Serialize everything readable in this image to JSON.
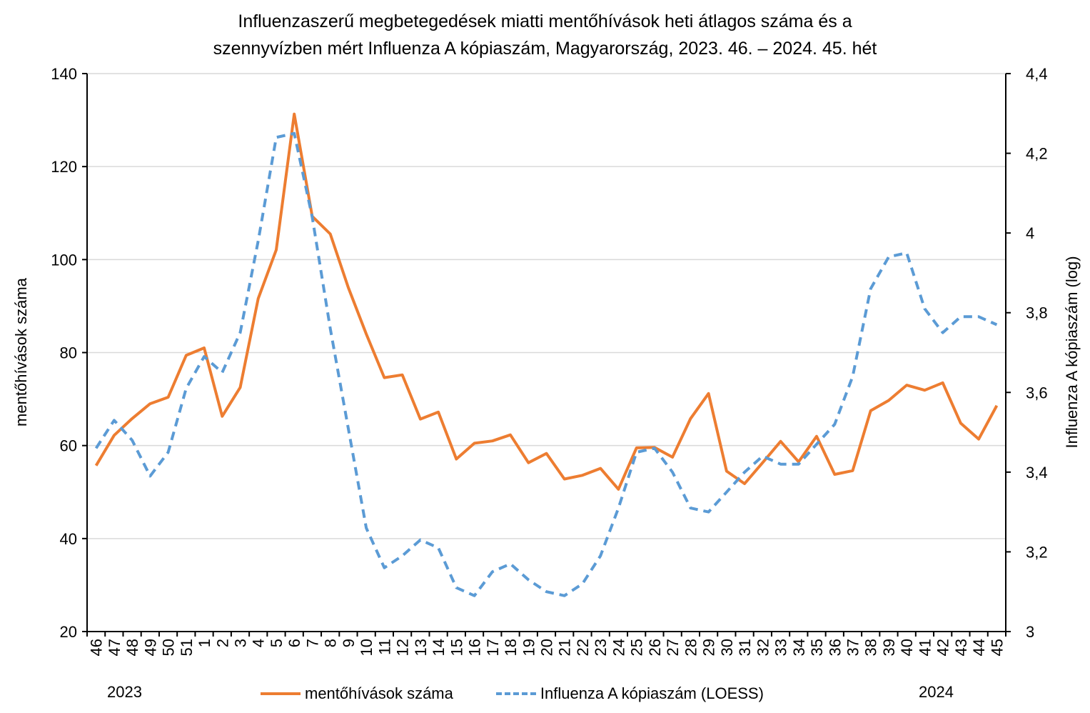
{
  "title_line1": "Influenzaszerű megbetegedések miatti mentőhívások heti átlagos száma és a",
  "title_line2": "szennyvízben mért Influenza A kópiaszám, Magyarország, 2023. 46. – 2024. 45. hét",
  "year_left": "2023",
  "year_right": "2024",
  "colors": {
    "calls": "#ED7D31",
    "influenza": "#5B9BD5",
    "grid": "#D9D9D9",
    "axis": "#000000"
  },
  "chart_data": {
    "type": "line",
    "title": "Influenzaszerű megbetegedések miatti mentőhívások heti átlagos száma és a szennyvízben mért Influenza A kópiaszám, Magyarország, 2023. 46. – 2024. 45. hét",
    "ylabel": "mentőhívások száma",
    "y2label": "Influenza A kópiaszám (log)",
    "ylim": [
      20,
      140
    ],
    "y2lim": [
      3.0,
      4.4
    ],
    "yticks": [
      "20",
      "40",
      "60",
      "80",
      "100",
      "120",
      "140"
    ],
    "y2ticks": [
      "3",
      "3,2",
      "3,4",
      "3,6",
      "3,8",
      "4",
      "4,2",
      "4,4"
    ],
    "categories": [
      "46",
      "47",
      "48",
      "49",
      "50",
      "51",
      "1",
      "2",
      "3",
      "4",
      "5",
      "6",
      "7",
      "8",
      "9",
      "10",
      "11",
      "12",
      "13",
      "14",
      "15",
      "16",
      "17",
      "18",
      "19",
      "20",
      "21",
      "22",
      "23",
      "24",
      "25",
      "26",
      "27",
      "28",
      "29",
      "30",
      "31",
      "32",
      "33",
      "34",
      "35",
      "36",
      "37",
      "38",
      "39",
      "40",
      "41",
      "42",
      "43",
      "44",
      "45"
    ],
    "grid": true,
    "legend_position": "bottom",
    "series": [
      {
        "name": "mentőhívások száma",
        "axis": "left",
        "style": "solid",
        "values": [
          55.7,
          62.2,
          65.8,
          69.0,
          70.4,
          79.4,
          81.0,
          66.3,
          72.5,
          91.6,
          102.1,
          131.3,
          109.3,
          105.5,
          94.0,
          84.0,
          74.6,
          75.2,
          65.7,
          67.2,
          57.1,
          60.5,
          61.0,
          62.3,
          56.3,
          58.3,
          52.8,
          53.6,
          55.1,
          50.6,
          59.5,
          59.6,
          57.5,
          65.8,
          71.2,
          54.5,
          51.8,
          56.3,
          60.9,
          56.5,
          62.0,
          53.8,
          54.6,
          67.5,
          69.7,
          73.0,
          71.9,
          73.5,
          64.8,
          61.4,
          68.6
        ]
      },
      {
        "name": "Influenza A kópiaszám (LOESS)",
        "axis": "right",
        "style": "dashed",
        "values": [
          3.46,
          3.53,
          3.48,
          3.39,
          3.45,
          3.61,
          3.69,
          3.65,
          3.75,
          3.98,
          4.24,
          4.25,
          4.04,
          3.76,
          3.51,
          3.26,
          3.16,
          3.19,
          3.23,
          3.21,
          3.11,
          3.09,
          3.15,
          3.17,
          3.13,
          3.1,
          3.09,
          3.12,
          3.19,
          3.31,
          3.45,
          3.46,
          3.4,
          3.31,
          3.3,
          3.35,
          3.4,
          3.44,
          3.42,
          3.42,
          3.47,
          3.52,
          3.64,
          3.86,
          3.94,
          3.95,
          3.81,
          3.75,
          3.79,
          3.79,
          3.77
        ]
      }
    ]
  }
}
